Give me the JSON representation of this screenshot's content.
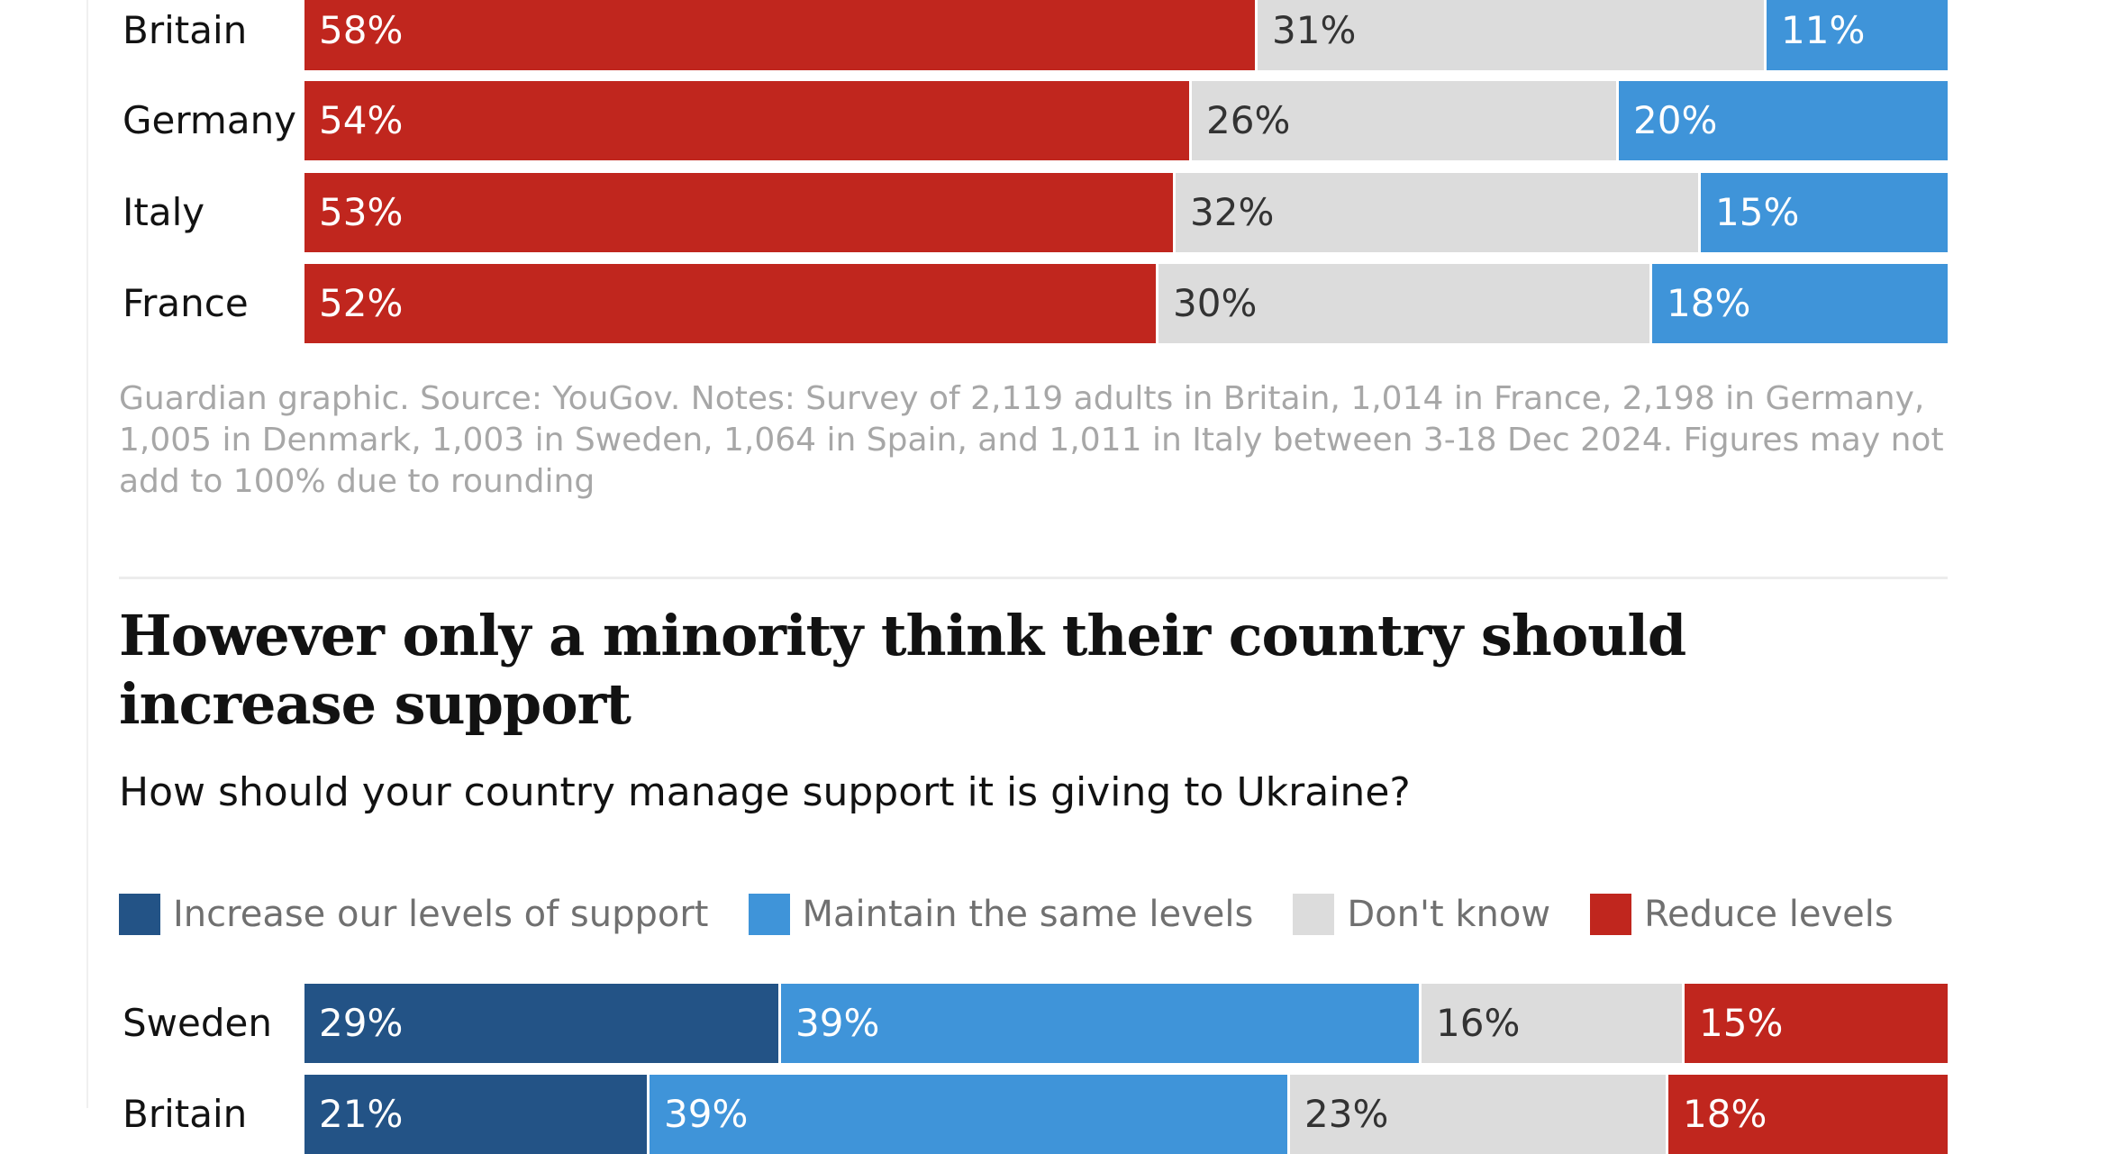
{
  "colors": {
    "reduce": "#c0261e",
    "dont_know": "#dcdcdc",
    "maintain": "#3f94d9",
    "increase": "#235386"
  },
  "chart_data": [
    {
      "type": "bar",
      "orientation": "horizontal-stacked-100",
      "categories": [
        "Britain",
        "Germany",
        "Italy",
        "France"
      ],
      "series": [
        {
          "values": [
            58,
            54,
            53,
            52
          ],
          "color": "#c0261e",
          "text_color": "#ffffff"
        },
        {
          "values": [
            31,
            26,
            32,
            30
          ],
          "color": "#dcdcdc",
          "text_color": "#333333"
        },
        {
          "values": [
            11,
            20,
            15,
            18
          ],
          "color": "#3f94d9",
          "text_color": "#ffffff"
        }
      ],
      "xlim": [
        0,
        100
      ],
      "notes": "Guardian graphic. Source: YouGov. Notes: Survey of 2,119 adults in Britain, 1,014 in France, 2,198 in Germany, 1,005 in Denmark, 1,003 in Sweden, 1,064 in Spain, and 1,011 in Italy between 3-18 Dec 2024. Figures may not add to 100% due to rounding"
    },
    {
      "type": "bar",
      "orientation": "horizontal-stacked-100",
      "title": "However only a minority think their country should increase support",
      "subtitle": "How should your country manage support it is giving to Ukraine?",
      "legend_position": "top",
      "categories": [
        "Sweden",
        "Britain"
      ],
      "series": [
        {
          "name": "Increase our levels of support",
          "values": [
            29,
            21
          ],
          "color": "#235386",
          "text_color": "#ffffff"
        },
        {
          "name": "Maintain the same levels",
          "values": [
            39,
            39
          ],
          "color": "#3f94d9",
          "text_color": "#ffffff"
        },
        {
          "name": "Don't know",
          "values": [
            16,
            23
          ],
          "color": "#dcdcdc",
          "text_color": "#333333"
        },
        {
          "name": "Reduce levels",
          "values": [
            15,
            18
          ],
          "color": "#c0261e",
          "text_color": "#ffffff"
        }
      ],
      "xlim": [
        0,
        100
      ]
    }
  ]
}
